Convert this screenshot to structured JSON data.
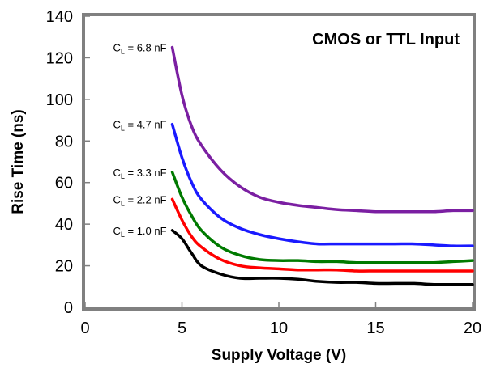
{
  "chart_data": {
    "type": "line",
    "xlabel": "Supply Voltage (V)",
    "ylabel": "Rise Time (ns)",
    "xlim": [
      0,
      20
    ],
    "ylim": [
      0,
      140
    ],
    "xticks": [
      0,
      5,
      10,
      15,
      20
    ],
    "yticks": [
      0,
      20,
      40,
      60,
      80,
      100,
      120,
      140
    ],
    "grid": false,
    "annotation": "CMOS or TTL Input",
    "series": [
      {
        "name": "C_L = 6.8 nF",
        "label_main": "C",
        "label_sub": "L",
        "label_rest": " = 6.8 nF",
        "color": "#7b1fa2",
        "points": [
          [
            4.5,
            125
          ],
          [
            5,
            102
          ],
          [
            5.5,
            87
          ],
          [
            6,
            78
          ],
          [
            7,
            66
          ],
          [
            8,
            58
          ],
          [
            9,
            53
          ],
          [
            10,
            50.5
          ],
          [
            11,
            49
          ],
          [
            12,
            48
          ],
          [
            13,
            47
          ],
          [
            14,
            46.5
          ],
          [
            15,
            46
          ],
          [
            16,
            46
          ],
          [
            17,
            46
          ],
          [
            18,
            46
          ],
          [
            19,
            46.5
          ],
          [
            20,
            46.5
          ]
        ]
      },
      {
        "name": "C_L = 4.7 nF",
        "label_main": "C",
        "label_sub": "L",
        "label_rest": " = 4.7 nF",
        "color": "#1a1aff",
        "points": [
          [
            4.5,
            88
          ],
          [
            5,
            72
          ],
          [
            5.5,
            60
          ],
          [
            6,
            52
          ],
          [
            7,
            43
          ],
          [
            8,
            38
          ],
          [
            9,
            35
          ],
          [
            10,
            33
          ],
          [
            11,
            31.5
          ],
          [
            12,
            30.5
          ],
          [
            13,
            30.5
          ],
          [
            14,
            30.5
          ],
          [
            15,
            30.5
          ],
          [
            16,
            30.5
          ],
          [
            17,
            30.5
          ],
          [
            18,
            30
          ],
          [
            19,
            29.5
          ],
          [
            20,
            29.5
          ]
        ]
      },
      {
        "name": "C_L = 3.3 nF",
        "label_main": "C",
        "label_sub": "L",
        "label_rest": " = 3.3 nF",
        "color": "#007a00",
        "points": [
          [
            4.5,
            65
          ],
          [
            5,
            53
          ],
          [
            5.5,
            44
          ],
          [
            6,
            37
          ],
          [
            7,
            29
          ],
          [
            8,
            25
          ],
          [
            9,
            23
          ],
          [
            10,
            22.5
          ],
          [
            11,
            22.5
          ],
          [
            12,
            22
          ],
          [
            13,
            22
          ],
          [
            14,
            21.5
          ],
          [
            15,
            21.5
          ],
          [
            16,
            21.5
          ],
          [
            17,
            21.5
          ],
          [
            18,
            21.5
          ],
          [
            19,
            22
          ],
          [
            20,
            22.5
          ]
        ]
      },
      {
        "name": "C_L = 2.2 nF",
        "label_main": "C",
        "label_sub": "L",
        "label_rest": " = 2.2 nF",
        "color": "#ff0000",
        "points": [
          [
            4.5,
            52
          ],
          [
            5,
            42
          ],
          [
            5.5,
            34
          ],
          [
            6,
            29
          ],
          [
            7,
            23
          ],
          [
            8,
            20
          ],
          [
            9,
            19
          ],
          [
            10,
            18.5
          ],
          [
            11,
            18
          ],
          [
            12,
            18
          ],
          [
            13,
            18
          ],
          [
            14,
            17.5
          ],
          [
            15,
            17.5
          ],
          [
            16,
            17.5
          ],
          [
            17,
            17.5
          ],
          [
            18,
            17.5
          ],
          [
            19,
            17.5
          ],
          [
            20,
            17.5
          ]
        ]
      },
      {
        "name": "C_L = 1.0 nF",
        "label_main": "C",
        "label_sub": "L",
        "label_rest": " = 1.0 nF",
        "color": "#000000",
        "points": [
          [
            4.5,
            37
          ],
          [
            5,
            33
          ],
          [
            5.5,
            26
          ],
          [
            6,
            20
          ],
          [
            7,
            16
          ],
          [
            8,
            14
          ],
          [
            9,
            14
          ],
          [
            10,
            14
          ],
          [
            11,
            13.5
          ],
          [
            12,
            12.5
          ],
          [
            13,
            12
          ],
          [
            14,
            12
          ],
          [
            15,
            11.5
          ],
          [
            16,
            11.5
          ],
          [
            17,
            11.5
          ],
          [
            18,
            11
          ],
          [
            19,
            11
          ],
          [
            20,
            11
          ]
        ]
      }
    ]
  }
}
